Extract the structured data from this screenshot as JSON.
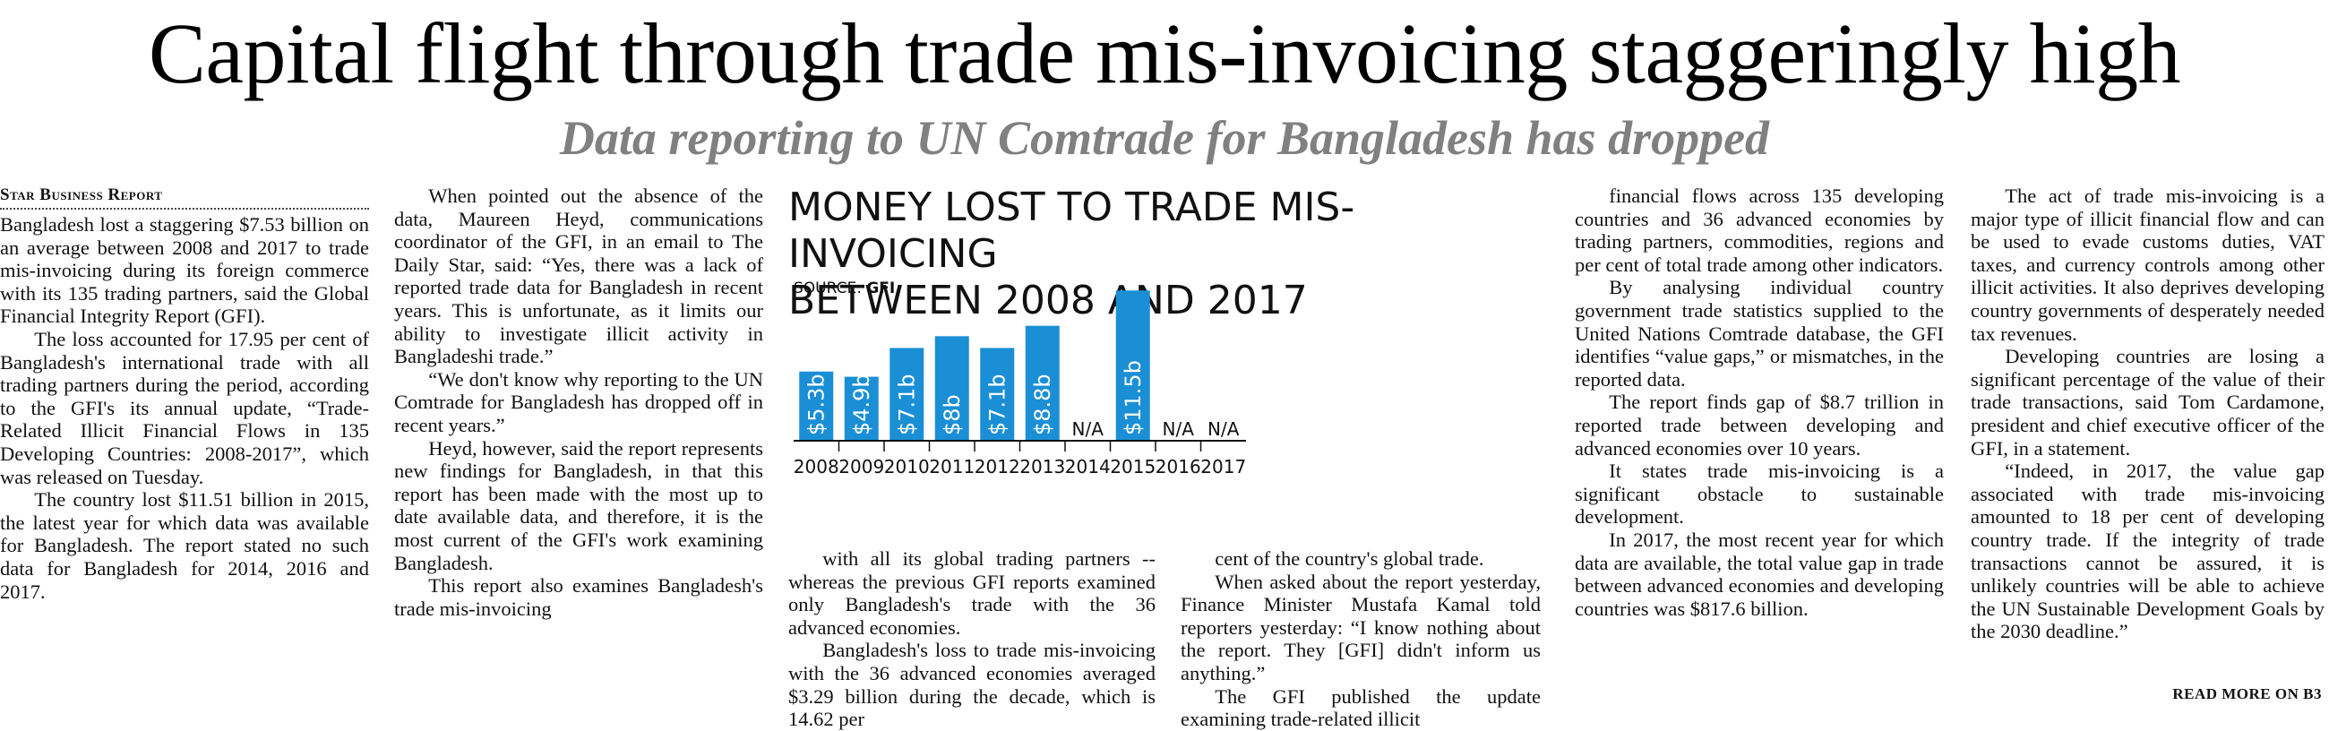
{
  "article": {
    "headline": "Capital flight through trade mis-invoicing staggeringly high",
    "subheadline": "Data reporting to UN Comtrade for Bangladesh has dropped",
    "byline": "Star Business Report",
    "read_more": "READ MORE ON B3"
  },
  "columns": [
    [
      "Bangladesh lost a staggering $7.53 billion on an average between 2008 and 2017 to trade mis-invoicing during its foreign commerce with its 135 trading partners, said the Global Financial Integrity Report (GFI).",
      "The loss accounted for 17.95 per cent of Bangladesh's international trade with all trading partners during the period, according to the GFI's its annual update, “Trade-Related Illicit Financial Flows in 135 Developing Countries: 2008-2017”, which was released on Tuesday.",
      "The country lost $11.51 billion in 2015, the latest year for which data was available for Bangladesh. The report stated no such data for Bangladesh for 2014, 2016 and 2017."
    ],
    [
      "When pointed out the absence of the data, Maureen Heyd, communications coordinator of the GFI, in an email to The Daily Star, said: “Yes, there was a lack of reported trade data for Bangladesh in recent years. This is unfortunate, as it limits our ability to investigate illicit activity in Bangladeshi trade.”",
      "“We don't know why reporting to the UN Comtrade for Bangladesh has dropped off in recent years.”",
      "Heyd, however, said the report represents new findings for Bangladesh, in that this report has been made with the most up to date available data, and therefore, it is the most current of the GFI's work examining Bangladesh.",
      "This report also examines Bangladesh's trade mis-invoicing"
    ],
    [
      "with all its global trading partners -- whereas the previous GFI reports examined only Bangladesh's trade with the 36 advanced economies.",
      "Bangladesh's loss to trade mis-invoicing with the 36 advanced economies averaged $3.29 billion during the decade, which is 14.62 per"
    ],
    [
      "cent of the country's global trade.",
      "When asked about the report yesterday, Finance Minister Mustafa Kamal told reporters yesterday: “I know nothing about the report. They [GFI] didn't inform us anything.”",
      "The GFI published the update examining trade-related illicit"
    ],
    [
      "financial flows across 135 developing countries and 36 advanced economies by trading partners, commodities, regions and per cent of total trade among other indicators.",
      "By analysing individual country government trade statistics supplied to the United Nations Comtrade database, the GFI identifies “value gaps,” or mismatches, in the reported data.",
      "The report finds gap of $8.7 trillion in reported trade between developing and advanced economies over 10 years.",
      "It states trade mis-invoicing is a significant obstacle to sustainable development.",
      "In 2017, the most recent year for which data are available, the total value gap in trade between advanced economies and developing countries was $817.6 billion."
    ],
    [
      "The act of trade mis-invoicing is a major type of illicit financial flow and can be used to evade customs duties, VAT taxes, and currency controls among other illicit activities. It also deprives developing country governments of desperately needed tax revenues.",
      "Developing countries are losing a significant percentage of the value of their trade transactions, said Tom Cardamone, president and chief executive officer of the GFI, in a statement.",
      "“Indeed, in 2017, the value gap associated with trade mis-invoicing amounted to 18 per cent of developing country trade. If the integrity of trade transactions cannot be assured, it is unlikely countries will be able to achieve the UN Sustainable Development Goals by the 2030 deadline.”"
    ]
  ],
  "chart_data": {
    "type": "bar",
    "title_line1": "MONEY LOST TO TRADE MIS-INVOICING",
    "title_line2": "BETWEEN 2008 AND 2017",
    "source_label": "SOURCE: ",
    "source_value": "GFI",
    "categories": [
      "2008",
      "2009",
      "2010",
      "2011",
      "2012",
      "2013",
      "2014",
      "2015",
      "2016",
      "2017"
    ],
    "values": [
      5.3,
      4.9,
      7.1,
      8.0,
      7.1,
      8.8,
      null,
      11.5,
      null,
      null
    ],
    "value_labels": [
      "$5.3b",
      "$4.9b",
      "$7.1b",
      "$8b",
      "$7.1b",
      "$8.8b",
      "N/A",
      "$11.5b",
      "N/A",
      "N/A"
    ],
    "unit": "billion USD",
    "bar_color": "#1a8fd6",
    "ylim": [
      0,
      12
    ],
    "grid": false
  }
}
